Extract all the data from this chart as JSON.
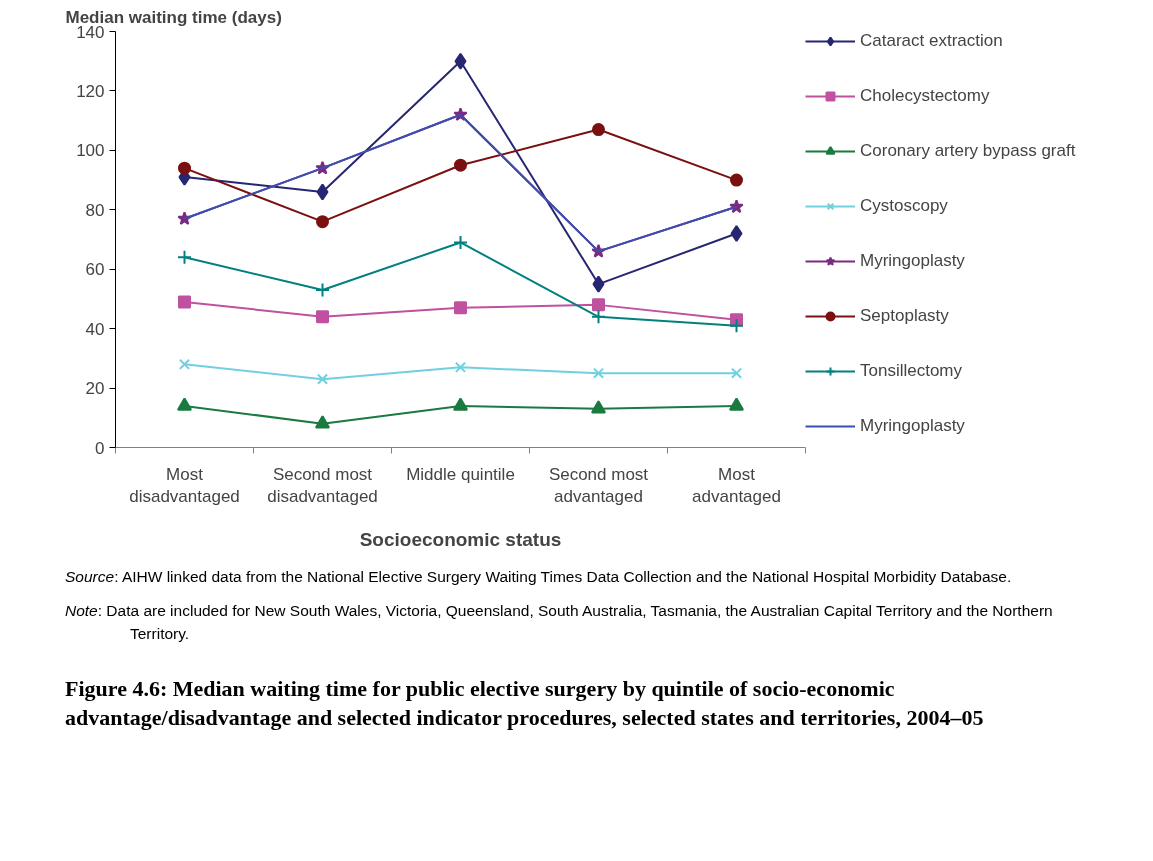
{
  "chart_data": {
    "type": "line",
    "title": "Figure 4.6: Median waiting time for public elective surgery by quintile of socio-economic advantage/disadvantage and selected indicator procedures, selected states and territories, 2004–05",
    "ylabel": "Median waiting time (days)",
    "xlabel": "Socioeconomic status",
    "categories": [
      "Most disadvantaged",
      "Second most disadvantaged",
      "Middle quintile",
      "Second most advantaged",
      "Most advantaged"
    ],
    "ylim": [
      0,
      140
    ],
    "yticks": [
      0,
      20,
      40,
      60,
      80,
      100,
      120,
      140
    ],
    "legend": "right",
    "series": [
      {
        "name": "Cataract extraction",
        "color": "#262673",
        "marker": "diamond",
        "values": [
          91,
          86,
          130,
          55,
          72
        ]
      },
      {
        "name": "Cholecystectomy",
        "color": "#c050a0",
        "marker": "square",
        "values": [
          49,
          44,
          47,
          48,
          43
        ]
      },
      {
        "name": "Coronary artery bypass graft",
        "color": "#1a7a40",
        "marker": "triangle",
        "values": [
          14,
          8,
          14,
          13,
          14
        ]
      },
      {
        "name": "Cystoscopy",
        "color": "#70d0e0",
        "marker": "x",
        "values": [
          28,
          23,
          27,
          25,
          25
        ]
      },
      {
        "name": "Myringoplasty",
        "color": "#7a2a80",
        "marker": "star",
        "values": [
          77,
          94,
          112,
          66,
          81
        ]
      },
      {
        "name": "Septoplasty",
        "color": "#7a1010",
        "marker": "circle",
        "values": [
          94,
          76,
          95,
          107,
          90
        ]
      },
      {
        "name": "Tonsillectomy",
        "color": "#008080",
        "marker": "cross",
        "values": [
          64,
          53,
          69,
          44,
          41
        ]
      },
      {
        "name": "Myringoplasty",
        "color": "#3a4fb0",
        "marker": "none",
        "values": [
          77,
          94,
          112,
          66,
          81
        ]
      }
    ],
    "annotations": [
      "Source: AIHW linked data from the National Elective Surgery Waiting Times Data Collection and the National Hospital Morbidity Database.",
      "Note: Data are included for New South Wales, Victoria, Queensland, South Australia, Tasmania, the Australian Capital Territory and the Northern Territory."
    ]
  }
}
